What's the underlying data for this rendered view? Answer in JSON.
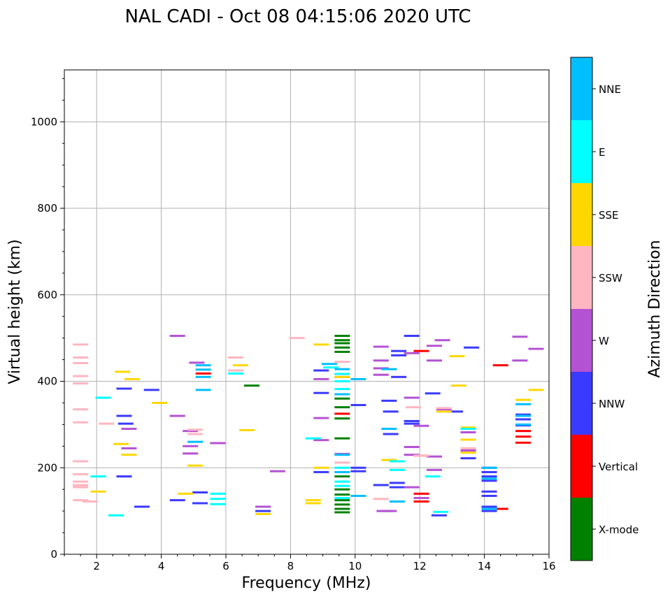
{
  "chart_data": {
    "type": "scatter",
    "title": "NAL CADI - Oct 08 04:15:06 2020 UTC",
    "xlabel": "Frequency (MHz)",
    "ylabel": "Virtual height (km)",
    "xlim": [
      1,
      16
    ],
    "ylim": [
      0,
      1120
    ],
    "xticks": [
      2,
      4,
      6,
      8,
      10,
      12,
      14,
      16
    ],
    "yticks": [
      0,
      200,
      400,
      600,
      800,
      1000
    ],
    "grid": true,
    "colorbar": {
      "label": "Azimuth Direction",
      "categories": [
        "X-mode",
        "Vertical",
        "NNW",
        "W",
        "SSW",
        "SSE",
        "E",
        "NNE"
      ],
      "colors": [
        "#008000",
        "#ff0000",
        "#3a3aff",
        "#b452d4",
        "#ffb6c1",
        "#ffd700",
        "#00ffff",
        "#00bfff"
      ]
    },
    "series": [
      {
        "name": "X-mode",
        "color": "#008000",
        "points": [
          [
            9.6,
            505
          ],
          [
            9.6,
            495
          ],
          [
            9.6,
            488
          ],
          [
            9.6,
            478
          ],
          [
            9.6,
            468
          ],
          [
            9.6,
            360
          ],
          [
            9.6,
            340
          ],
          [
            9.6,
            314
          ],
          [
            9.6,
            268
          ],
          [
            9.6,
            150
          ],
          [
            9.6,
            138
          ],
          [
            9.6,
            125
          ],
          [
            9.6,
            115
          ],
          [
            9.6,
            105
          ],
          [
            9.6,
            97
          ],
          [
            9.6,
            180
          ],
          [
            6.8,
            390
          ]
        ]
      },
      {
        "name": "Vertical",
        "color": "#ff0000",
        "points": [
          [
            9.6,
            325
          ],
          [
            12.05,
            470
          ],
          [
            12.05,
            228
          ],
          [
            12.05,
            140
          ],
          [
            12.05,
            122
          ],
          [
            14.5,
            437
          ],
          [
            14.5,
            105
          ],
          [
            15.2,
            285
          ],
          [
            15.2,
            272
          ],
          [
            15.2,
            258
          ],
          [
            5.3,
            418
          ]
        ]
      },
      {
        "name": "NNW",
        "color": "#3a3aff",
        "points": [
          [
            8.95,
            425
          ],
          [
            8.95,
            373
          ],
          [
            8.95,
            190
          ],
          [
            11.75,
            505
          ],
          [
            11.35,
            470
          ],
          [
            11.35,
            460
          ],
          [
            11.35,
            410
          ],
          [
            10.1,
            345
          ],
          [
            10.1,
            200
          ],
          [
            10.1,
            192
          ],
          [
            10.8,
            160
          ],
          [
            11.3,
            165
          ],
          [
            11.3,
            155
          ],
          [
            12.6,
            90
          ],
          [
            13.1,
            330
          ],
          [
            13.6,
            478
          ],
          [
            13.5,
            222
          ],
          [
            12.4,
            372
          ],
          [
            11.1,
            330
          ],
          [
            11.1,
            278
          ],
          [
            11.75,
            308
          ],
          [
            11.75,
            302
          ],
          [
            14.15,
            200
          ],
          [
            14.15,
            190
          ],
          [
            14.15,
            180
          ],
          [
            14.15,
            170
          ],
          [
            14.15,
            145
          ],
          [
            14.15,
            135
          ],
          [
            14.15,
            110
          ],
          [
            14.15,
            100
          ],
          [
            15.2,
            323
          ],
          [
            15.2,
            312
          ],
          [
            15.2,
            298
          ],
          [
            3.7,
            380
          ],
          [
            5.2,
            143
          ],
          [
            5.2,
            118
          ],
          [
            7.15,
            100
          ],
          [
            4.5,
            125
          ],
          [
            2.85,
            383
          ],
          [
            2.85,
            320
          ],
          [
            2.9,
            302
          ],
          [
            2.85,
            180
          ],
          [
            3.4,
            110
          ],
          [
            11.05,
            355
          ]
        ]
      },
      {
        "name": "W",
        "color": "#b452d4",
        "points": [
          [
            15.1,
            503
          ],
          [
            15.1,
            448
          ],
          [
            15.6,
            475
          ],
          [
            10.8,
            480
          ],
          [
            10.8,
            448
          ],
          [
            10.8,
            430
          ],
          [
            10.8,
            415
          ],
          [
            11.75,
            465
          ],
          [
            12.45,
            482
          ],
          [
            12.45,
            448
          ],
          [
            12.7,
            495
          ],
          [
            11.75,
            362
          ],
          [
            11.75,
            248
          ],
          [
            11.75,
            230
          ],
          [
            11.75,
            155
          ],
          [
            12.05,
            297
          ],
          [
            12.45,
            226
          ],
          [
            12.45,
            195
          ],
          [
            12.75,
            335
          ],
          [
            13.5,
            282
          ],
          [
            13.5,
            240
          ],
          [
            8.95,
            405
          ],
          [
            8.95,
            315
          ],
          [
            8.95,
            264
          ],
          [
            9.6,
            232
          ],
          [
            9.6,
            410
          ],
          [
            10.9,
            100
          ],
          [
            11.05,
            100
          ],
          [
            7.15,
            110
          ],
          [
            7.6,
            192
          ],
          [
            5.1,
            443
          ],
          [
            5.75,
            257
          ],
          [
            4.9,
            285
          ],
          [
            4.9,
            250
          ],
          [
            4.9,
            233
          ],
          [
            3.0,
            290
          ],
          [
            3.0,
            245
          ],
          [
            4.5,
            320
          ],
          [
            4.5,
            505
          ],
          [
            12.05,
            130
          ]
        ]
      },
      {
        "name": "SSW",
        "color": "#ffb6c1",
        "points": [
          [
            8.2,
            500
          ],
          [
            9.6,
            445
          ],
          [
            9.6,
            212
          ],
          [
            11.8,
            340
          ],
          [
            12.05,
            228
          ],
          [
            10.8,
            128
          ],
          [
            6.3,
            455
          ],
          [
            6.3,
            425
          ],
          [
            5.05,
            288
          ],
          [
            5.05,
            278
          ],
          [
            1.5,
            485
          ],
          [
            1.5,
            455
          ],
          [
            1.5,
            442
          ],
          [
            1.5,
            412
          ],
          [
            1.5,
            395
          ],
          [
            1.5,
            335
          ],
          [
            1.5,
            305
          ],
          [
            1.5,
            215
          ],
          [
            1.5,
            185
          ],
          [
            1.5,
            168
          ],
          [
            1.5,
            160
          ],
          [
            1.5,
            155
          ],
          [
            1.5,
            125
          ],
          [
            1.8,
            122
          ],
          [
            2.3,
            302
          ],
          [
            13.5,
            245
          ],
          [
            12.75,
            338
          ]
        ]
      },
      {
        "name": "SSE",
        "color": "#ffd700",
        "points": [
          [
            8.95,
            485
          ],
          [
            8.95,
            200
          ],
          [
            8.7,
            125
          ],
          [
            8.7,
            118
          ],
          [
            9.6,
            410
          ],
          [
            13.15,
            458
          ],
          [
            13.2,
            390
          ],
          [
            13.5,
            293
          ],
          [
            13.5,
            265
          ],
          [
            13.5,
            235
          ],
          [
            12.75,
            330
          ],
          [
            15.2,
            357
          ],
          [
            15.6,
            380
          ],
          [
            11.05,
            218
          ],
          [
            6.45,
            437
          ],
          [
            6.65,
            287
          ],
          [
            5.05,
            205
          ],
          [
            4.75,
            140
          ],
          [
            3.95,
            350
          ],
          [
            2.8,
            422
          ],
          [
            3.1,
            405
          ],
          [
            3.0,
            230
          ],
          [
            2.75,
            255
          ],
          [
            2.05,
            145
          ],
          [
            7.15,
            93
          ]
        ]
      },
      {
        "name": "E",
        "color": "#00ffff",
        "points": [
          [
            9.25,
            432
          ],
          [
            9.6,
            417
          ],
          [
            9.6,
            400
          ],
          [
            9.6,
            382
          ],
          [
            9.6,
            200
          ],
          [
            9.6,
            168
          ],
          [
            9.6,
            158
          ],
          [
            9.6,
            130
          ],
          [
            8.7,
            268
          ],
          [
            11.3,
            215
          ],
          [
            11.3,
            195
          ],
          [
            12.4,
            180
          ],
          [
            12.65,
            98
          ],
          [
            6.3,
            418
          ],
          [
            5.75,
            140
          ],
          [
            5.75,
            128
          ],
          [
            5.75,
            116
          ],
          [
            2.2,
            362
          ],
          [
            2.05,
            180
          ],
          [
            2.6,
            90
          ],
          [
            13.5,
            290
          ]
        ]
      },
      {
        "name": "NNE",
        "color": "#00bfff",
        "points": [
          [
            5.3,
            437
          ],
          [
            5.3,
            427
          ],
          [
            5.3,
            410
          ],
          [
            5.3,
            380
          ],
          [
            9.6,
            428
          ],
          [
            9.6,
            370
          ],
          [
            9.6,
            190
          ],
          [
            10.1,
            405
          ],
          [
            10.1,
            135
          ],
          [
            11.05,
            428
          ],
          [
            11.05,
            290
          ],
          [
            11.3,
            122
          ],
          [
            14.15,
            200
          ],
          [
            14.15,
            175
          ],
          [
            14.15,
            105
          ],
          [
            15.2,
            347
          ],
          [
            15.2,
            320
          ],
          [
            15.2,
            300
          ],
          [
            5.05,
            260
          ],
          [
            9.6,
            230
          ],
          [
            9.2,
            440
          ]
        ]
      }
    ]
  }
}
